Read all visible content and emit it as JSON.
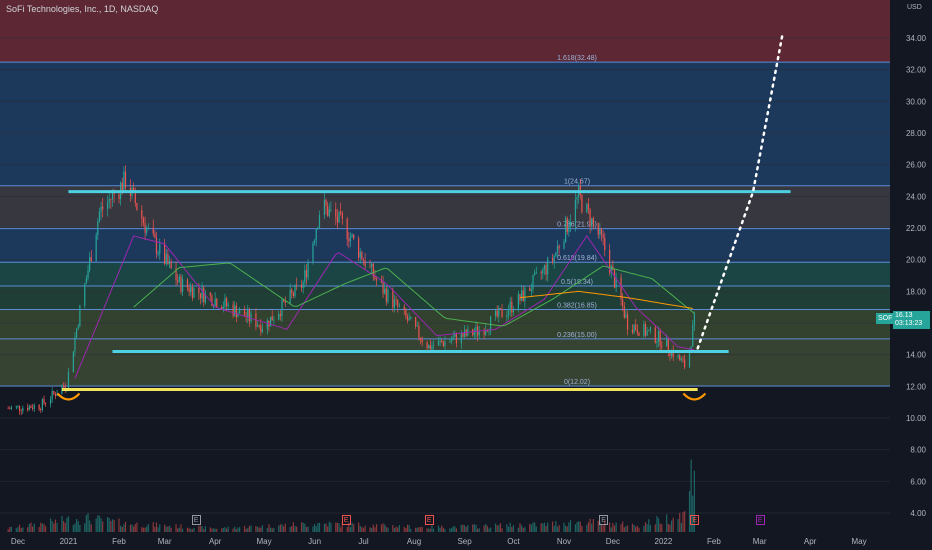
{
  "header": {
    "title": "SoFi Technologies, Inc., 1D, NASDAQ",
    "currency": "USD"
  },
  "price_badge": {
    "symbol": "SOFI",
    "price": "16.13",
    "countdown": "03:13:23",
    "color": "#26a69a"
  },
  "event_markers": [
    {
      "label": "E",
      "date": "2021-03-20",
      "color": "#9598a1"
    },
    {
      "label": "E",
      "date": "2021-06-20",
      "color": "#ef5350"
    },
    {
      "label": "E",
      "date": "2021-08-10",
      "color": "#ef5350"
    },
    {
      "label": "E",
      "date": "2021-11-25",
      "color": "#9598a1"
    },
    {
      "label": "E",
      "date": "2022-01-20",
      "color": "#ef5350"
    },
    {
      "label": "E",
      "date": "2022-03-01",
      "color": "#9c27b0"
    }
  ],
  "chart_data": {
    "type": "candlestick",
    "title": "SoFi Technologies, Inc., 1D, NASDAQ",
    "x_ticks": [
      "Dec",
      "2021",
      "Feb",
      "Mar",
      "Apr",
      "May",
      "Jun",
      "Jul",
      "Aug",
      "Sep",
      "Oct",
      "Nov",
      "Dec",
      "2022",
      "Feb",
      "Mar",
      "Apr",
      "May"
    ],
    "y_ticks": [
      4.0,
      6.0,
      8.0,
      10.0,
      12.0,
      14.0,
      16.0,
      18.0,
      20.0,
      22.0,
      24.0,
      26.0,
      28.0,
      30.0,
      32.0,
      34.0
    ],
    "ylim": [
      2.8,
      36.4
    ],
    "x_range": [
      "2020-11-20",
      "2022-05-20"
    ],
    "grid": true,
    "fib_levels": [
      {
        "ratio": "1.618(32.48)",
        "value": 32.48
      },
      {
        "ratio": "1(24.67)",
        "value": 24.67
      },
      {
        "ratio": "0.786(21.96)",
        "value": 21.96
      },
      {
        "ratio": "0.618(19.84)",
        "value": 19.84
      },
      {
        "ratio": "0.5(18.34)",
        "value": 18.34
      },
      {
        "ratio": "0.382(16.85)",
        "value": 16.85
      },
      {
        "ratio": "0.236(15.00)",
        "value": 15.0
      },
      {
        "ratio": "0(12.02)",
        "value": 12.02
      }
    ],
    "fib_zone_colors": [
      "#6b2b37",
      "#1e3f66",
      "#3d3d44",
      "#1e3f66",
      "#1d4d4a",
      "#22473a",
      "#3a4a30",
      "#3d4a35",
      "#6b2b37"
    ],
    "support_lines": [
      {
        "name": "upper",
        "value": 24.3,
        "from": "2021-01-01",
        "to": "2022-03-20",
        "color": "#4dd0e1"
      },
      {
        "name": "middle",
        "value": 14.2,
        "from": "2021-01-28",
        "to": "2022-02-10",
        "color": "#4dd0e1"
      },
      {
        "name": "lower",
        "value": 11.8,
        "from": "2020-12-28",
        "to": "2022-01-22",
        "color": "#f3e55b"
      }
    ],
    "projection_points": [
      {
        "date": "2022-01-22",
        "value": 14.4
      },
      {
        "date": "2022-02-25",
        "value": 24.3
      },
      {
        "date": "2022-03-15",
        "value": 34.2
      }
    ],
    "current_price": 16.13,
    "ohlc_anchors": [
      {
        "date": "2020-11-25",
        "value": 10.6
      },
      {
        "date": "2020-12-15",
        "value": 10.8
      },
      {
        "date": "2020-12-31",
        "value": 12.2
      },
      {
        "date": "2021-01-08",
        "value": 16.8
      },
      {
        "date": "2021-01-20",
        "value": 23.0
      },
      {
        "date": "2021-02-05",
        "value": 25.0
      },
      {
        "date": "2021-02-20",
        "value": 21.5
      },
      {
        "date": "2021-03-10",
        "value": 18.5
      },
      {
        "date": "2021-04-01",
        "value": 17.5
      },
      {
        "date": "2021-05-01",
        "value": 15.8
      },
      {
        "date": "2021-05-25",
        "value": 18.5
      },
      {
        "date": "2021-06-05",
        "value": 23.5
      },
      {
        "date": "2021-06-20",
        "value": 22.0
      },
      {
        "date": "2021-07-10",
        "value": 18.5
      },
      {
        "date": "2021-08-10",
        "value": 14.5
      },
      {
        "date": "2021-09-10",
        "value": 15.5
      },
      {
        "date": "2021-10-05",
        "value": 17.5
      },
      {
        "date": "2021-10-25",
        "value": 20.0
      },
      {
        "date": "2021-11-10",
        "value": 24.0
      },
      {
        "date": "2021-11-25",
        "value": 21.0
      },
      {
        "date": "2021-12-10",
        "value": 16.0
      },
      {
        "date": "2021-12-30",
        "value": 15.0
      },
      {
        "date": "2022-01-15",
        "value": 13.2
      },
      {
        "date": "2022-01-20",
        "value": 16.13
      }
    ],
    "volume_anchors": [
      {
        "date": "2020-11-25",
        "value": 0.3
      },
      {
        "date": "2021-01-10",
        "value": 1.4
      },
      {
        "date": "2021-02-05",
        "value": 0.8
      },
      {
        "date": "2021-04-01",
        "value": 0.3
      },
      {
        "date": "2021-06-05",
        "value": 0.8
      },
      {
        "date": "2021-08-10",
        "value": 0.4
      },
      {
        "date": "2021-10-20",
        "value": 0.7
      },
      {
        "date": "2021-11-10",
        "value": 1.0
      },
      {
        "date": "2021-12-15",
        "value": 0.6
      },
      {
        "date": "2022-01-15",
        "value": 1.8
      },
      {
        "date": "2022-01-19",
        "value": 7.2
      }
    ],
    "series": [
      {
        "name": "",
        "type": "ma",
        "color": "#9c27b0",
        "anchors": [
          {
            "date": "2021-01-05",
            "value": 12.5
          },
          {
            "date": "2021-02-10",
            "value": 21.5
          },
          {
            "date": "2021-03-01",
            "value": 21.0
          },
          {
            "date": "2021-04-01",
            "value": 17.0
          },
          {
            "date": "2021-05-15",
            "value": 15.6
          },
          {
            "date": "2021-06-15",
            "value": 20.5
          },
          {
            "date": "2021-07-15",
            "value": 18.5
          },
          {
            "date": "2021-08-15",
            "value": 15.2
          },
          {
            "date": "2021-09-20",
            "value": 15.6
          },
          {
            "date": "2021-10-20",
            "value": 17.5
          },
          {
            "date": "2021-11-15",
            "value": 21.5
          },
          {
            "date": "2021-12-15",
            "value": 17.0
          },
          {
            "date": "2022-01-10",
            "value": 14.5
          },
          {
            "date": "2022-01-20",
            "value": 14.3
          }
        ]
      },
      {
        "name": "",
        "type": "ma",
        "color": "#4caf50",
        "anchors": [
          {
            "date": "2021-02-10",
            "value": 17.0
          },
          {
            "date": "2021-03-10",
            "value": 19.5
          },
          {
            "date": "2021-04-10",
            "value": 19.8
          },
          {
            "date": "2021-05-20",
            "value": 17.0
          },
          {
            "date": "2021-06-20",
            "value": 18.5
          },
          {
            "date": "2021-07-15",
            "value": 19.5
          },
          {
            "date": "2021-08-20",
            "value": 16.3
          },
          {
            "date": "2021-09-25",
            "value": 15.8
          },
          {
            "date": "2021-10-25",
            "value": 17.5
          },
          {
            "date": "2021-11-25",
            "value": 19.6
          },
          {
            "date": "2021-12-25",
            "value": 18.8
          },
          {
            "date": "2022-01-20",
            "value": 16.6
          }
        ]
      },
      {
        "name": "",
        "type": "ma",
        "color": "#ff9800",
        "anchors": [
          {
            "date": "2021-10-05",
            "value": 17.6
          },
          {
            "date": "2021-11-10",
            "value": 18.0
          },
          {
            "date": "2021-12-10",
            "value": 17.6
          },
          {
            "date": "2022-01-20",
            "value": 16.9
          }
        ]
      }
    ]
  }
}
